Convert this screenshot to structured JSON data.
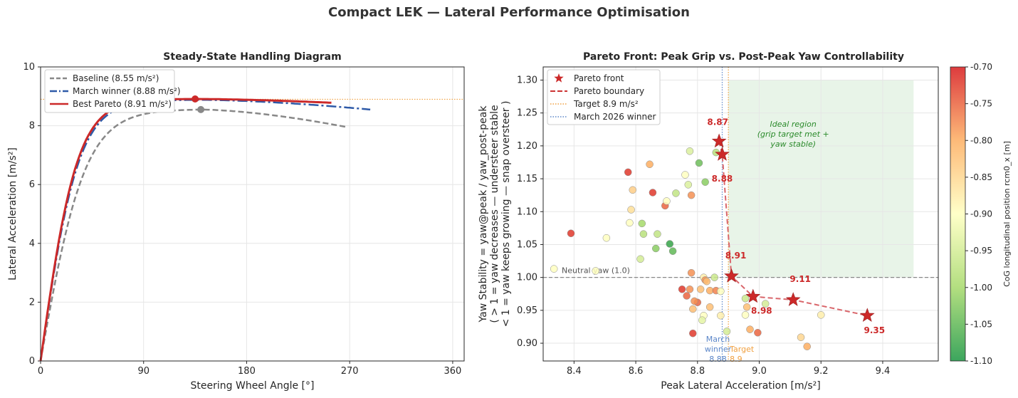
{
  "figure": {
    "title": "Compact LEK — Lateral Performance Optimisation"
  },
  "colors": {
    "baseline": "#888888",
    "march": "#2e5aa8",
    "best": "#cc2929",
    "target": "#f0a040",
    "march_line": "#5b86c8",
    "ideal_fill": "#e8f4e8",
    "ideal_text": "#2a8a2a"
  },
  "chart_data": [
    {
      "type": "line",
      "title": "Steady-State Handling Diagram",
      "xlabel": "Steering Wheel Angle  [°]",
      "ylabel": "Lateral Acceleration  [m/s²]",
      "xlim": [
        0,
        370
      ],
      "ylim": [
        0,
        10
      ],
      "xticks": [
        "0",
        "90",
        "180",
        "270",
        "360"
      ],
      "yticks": [
        "0",
        "2",
        "4",
        "6",
        "8",
        "10"
      ],
      "grid": true,
      "legend_position": "top-left",
      "target_line_y": 8.9,
      "series": [
        {
          "name": "Baseline  (8.55 m/s²)",
          "style": "dashed",
          "color": "#888888",
          "limit": 8.55,
          "k": 0.0255,
          "x_end": 268,
          "y_end": 7.95,
          "peak": [
            140,
            8.55
          ]
        },
        {
          "name": "March winner  (8.88 m/s²)",
          "style": "dashdot",
          "color": "#2e5aa8",
          "limit": 8.88,
          "k": 0.03,
          "x_end": 288,
          "y_end": 8.55,
          "peak": [
            140,
            8.88
          ]
        },
        {
          "name": "Best Pareto  (8.91 m/s²)",
          "style": "solid",
          "color": "#cc2929",
          "limit": 8.91,
          "k": 0.031,
          "x_end": 255,
          "y_end": 8.78,
          "peak": [
            135,
            8.91
          ]
        }
      ]
    },
    {
      "type": "scatter",
      "title": "Pareto Front: Peak Grip  vs.  Post-Peak Yaw Controllability",
      "xlabel": "Peak Lateral Acceleration  [m/s²]",
      "ylabel_lines": [
        "Yaw Stability  =  yaw@peak / yaw_post-peak",
        "( > 1 = yaw decreases — understeer stable",
        "< 1 = yaw keeps growing — snap oversteer )"
      ],
      "xlim": [
        8.3,
        9.58
      ],
      "ylim": [
        0.873,
        1.32
      ],
      "xticks": [
        "8.4",
        "8.6",
        "8.8",
        "9.0",
        "9.2",
        "9.4"
      ],
      "yticks": [
        "0.90",
        "0.95",
        "1.00",
        "1.05",
        "1.10",
        "1.15",
        "1.20",
        "1.25",
        "1.30"
      ],
      "grid": true,
      "legend_position": "top-left",
      "legend": [
        "Pareto front",
        "Pareto boundary",
        "Target 8.9 m/s²",
        "March 2026 winner"
      ],
      "colorbar": {
        "label": "CoG longitudinal position  rcm0_x  [m]",
        "min": -1.1,
        "max": -0.7,
        "ticks": [
          "-0.70",
          "-0.75",
          "-0.80",
          "-0.85",
          "-0.90",
          "-0.95",
          "-1.00",
          "-1.05",
          "-1.10"
        ]
      },
      "neutral_line": {
        "y": 1.0,
        "label": "Neutral yaw  (1.0)"
      },
      "target_x": 8.9,
      "march_x": 8.88,
      "march_annotation": [
        "March",
        "winner",
        "8.88"
      ],
      "target_annotation": [
        "Target",
        "8.9"
      ],
      "ideal_region": {
        "x": [
          8.9,
          9.5
        ],
        "y": [
          1.0,
          1.3
        ],
        "label_lines": [
          "Ideal region",
          "(grip target met +",
          "yaw stable)"
        ]
      },
      "pareto": [
        {
          "x": 8.87,
          "y": 1.207,
          "label": "8.87"
        },
        {
          "x": 8.88,
          "y": 1.187,
          "label": "8.88"
        },
        {
          "x": 8.91,
          "y": 1.002,
          "label": "8.91"
        },
        {
          "x": 8.98,
          "y": 0.971,
          "label": "8.98"
        },
        {
          "x": 9.11,
          "y": 0.966,
          "label": "9.11"
        },
        {
          "x": 9.35,
          "y": 0.942,
          "label": "9.35"
        }
      ],
      "points": [
        [
          8.335,
          1.013,
          -0.9
        ],
        [
          8.39,
          1.067,
          -0.72
        ],
        [
          8.47,
          1.01,
          -0.9
        ],
        [
          8.505,
          1.06,
          -0.9
        ],
        [
          8.575,
          1.16,
          -0.72
        ],
        [
          8.58,
          1.083,
          -0.9
        ],
        [
          8.585,
          1.103,
          -0.86
        ],
        [
          8.59,
          1.133,
          -0.84
        ],
        [
          8.615,
          1.028,
          -0.95
        ],
        [
          8.62,
          1.082,
          -1.0
        ],
        [
          8.625,
          1.066,
          -0.98
        ],
        [
          8.645,
          1.172,
          -0.8
        ],
        [
          8.655,
          1.129,
          -0.72
        ],
        [
          8.665,
          1.044,
          -1.02
        ],
        [
          8.67,
          1.066,
          -0.97
        ],
        [
          8.695,
          1.109,
          -0.75
        ],
        [
          8.7,
          1.116,
          -0.9
        ],
        [
          8.71,
          1.051,
          -1.08
        ],
        [
          8.72,
          1.04,
          -1.05
        ],
        [
          8.73,
          1.128,
          -0.97
        ],
        [
          8.76,
          1.156,
          -0.9
        ],
        [
          8.77,
          1.141,
          -0.94
        ],
        [
          8.775,
          1.192,
          -0.94
        ],
        [
          8.78,
          1.125,
          -0.78
        ],
        [
          8.805,
          1.174,
          -1.04
        ],
        [
          8.825,
          1.145,
          -1.02
        ],
        [
          8.86,
          1.19,
          -0.98
        ],
        [
          8.78,
          1.007,
          -0.78
        ],
        [
          8.8,
          0.962,
          -0.75
        ],
        [
          8.81,
          0.982,
          -0.82
        ],
        [
          8.82,
          1.0,
          -0.88
        ],
        [
          8.825,
          0.996,
          -0.78
        ],
        [
          8.83,
          0.994,
          -0.82
        ],
        [
          8.84,
          0.98,
          -0.8
        ],
        [
          8.855,
          1.0,
          -0.96
        ],
        [
          8.86,
          0.98,
          -0.77
        ],
        [
          8.875,
          0.979,
          -0.9
        ],
        [
          8.875,
          0.942,
          -0.88
        ],
        [
          8.895,
          0.918,
          -0.95
        ],
        [
          8.84,
          0.955,
          -0.82
        ],
        [
          8.79,
          0.964,
          -0.78
        ],
        [
          8.775,
          0.982,
          -0.78
        ],
        [
          8.765,
          0.972,
          -0.75
        ],
        [
          8.785,
          0.952,
          -0.82
        ],
        [
          8.82,
          0.942,
          -0.9
        ],
        [
          8.815,
          0.935,
          -0.93
        ],
        [
          8.75,
          0.982,
          -0.72
        ],
        [
          8.785,
          0.915,
          -0.72
        ],
        [
          8.955,
          0.943,
          -0.9
        ],
        [
          8.955,
          0.968,
          -0.96
        ],
        [
          8.96,
          0.955,
          -0.82
        ],
        [
          8.97,
          0.921,
          -0.8
        ],
        [
          8.995,
          0.916,
          -0.75
        ],
        [
          9.02,
          0.96,
          -0.95
        ],
        [
          9.135,
          0.909,
          -0.85
        ],
        [
          9.155,
          0.895,
          -0.8
        ],
        [
          9.2,
          0.943,
          -0.88
        ]
      ]
    }
  ]
}
